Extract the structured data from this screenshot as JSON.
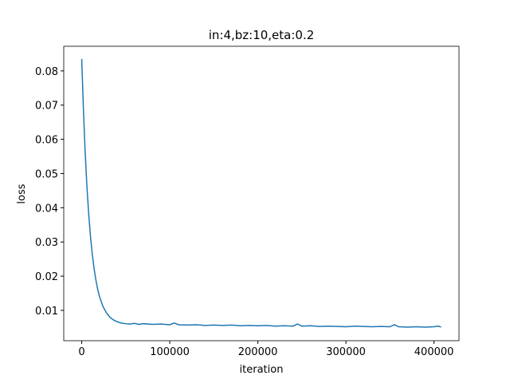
{
  "chart_data": {
    "type": "line",
    "title": "in:4,bz:10,eta:0.2",
    "x_label": "iteration",
    "y_label": "loss",
    "x": [
      0,
      2000,
      4000,
      6000,
      8000,
      10000,
      12000,
      14000,
      16000,
      18000,
      20000,
      24000,
      28000,
      32000,
      36000,
      40000,
      45000,
      50000,
      55000,
      60000,
      65000,
      70000,
      80000,
      90000,
      100000,
      105000,
      110000,
      120000,
      130000,
      140000,
      150000,
      160000,
      170000,
      180000,
      190000,
      200000,
      210000,
      220000,
      230000,
      240000,
      245000,
      250000,
      260000,
      270000,
      280000,
      290000,
      300000,
      310000,
      320000,
      330000,
      340000,
      350000,
      355000,
      360000,
      370000,
      380000,
      390000,
      400000,
      405000,
      408000
    ],
    "series": [
      {
        "name": "loss",
        "color": "#1f77b4",
        "values": [
          0.0835,
          0.0683,
          0.0558,
          0.0458,
          0.0379,
          0.0315,
          0.0264,
          0.0223,
          0.019,
          0.0163,
          0.0142,
          0.0112,
          0.0093,
          0.008,
          0.0072,
          0.0067,
          0.0063,
          0.0061,
          0.006,
          0.0062,
          0.0059,
          0.0061,
          0.0059,
          0.006,
          0.0058,
          0.0063,
          0.0058,
          0.0057,
          0.0058,
          0.0056,
          0.0057,
          0.0056,
          0.0057,
          0.0055,
          0.0056,
          0.0055,
          0.0056,
          0.0054,
          0.0055,
          0.0054,
          0.006,
          0.0054,
          0.0055,
          0.0053,
          0.0054,
          0.0053,
          0.0052,
          0.0054,
          0.0053,
          0.0052,
          0.0053,
          0.0052,
          0.0058,
          0.0052,
          0.0051,
          0.0052,
          0.0051,
          0.0052,
          0.0054,
          0.0051
        ]
      }
    ],
    "xlim": [
      -20400,
      428400
    ],
    "ylim": [
      0.00113,
      0.0872
    ],
    "xticks": [
      0,
      100000,
      200000,
      300000,
      400000
    ],
    "yticks": [
      0.01,
      0.02,
      0.03,
      0.04,
      0.05,
      0.06,
      0.07,
      0.08
    ]
  }
}
